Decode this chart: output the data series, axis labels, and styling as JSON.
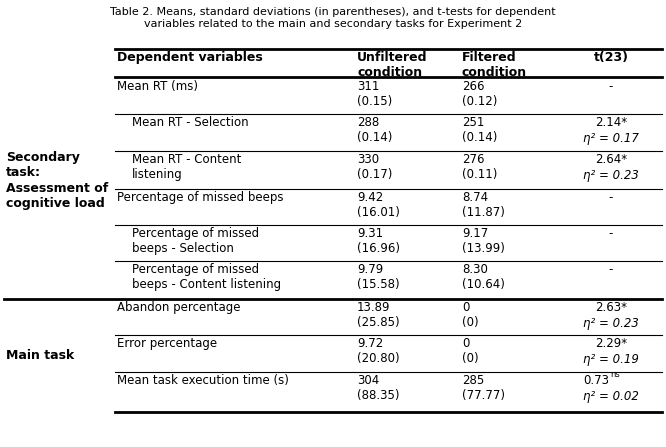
{
  "title": "Table 2. Means, standard deviations (in parentheses), and t-tests for dependent\nvariables related to the main and secondary tasks for Experiment 2",
  "col_headers": [
    "Dependent variables",
    "Unfiltered\ncondition",
    "Filtered\ncondition",
    "t(23)"
  ],
  "rows": [
    {
      "indent": 0,
      "var": "Mean RT (ms)",
      "unfiltered": "311\n(0.15)",
      "filtered": "266\n(0.12)",
      "t": "-",
      "t_line2": ""
    },
    {
      "indent": 1,
      "var": "Mean RT - Selection",
      "unfiltered": "288\n(0.14)",
      "filtered": "251\n(0.14)",
      "t": "2.14*",
      "t_line2": "η² = 0.17"
    },
    {
      "indent": 1,
      "var": "Mean RT - Content\nlistening",
      "unfiltered": "330\n(0.17)",
      "filtered": "276\n(0.11)",
      "t": "2.64*",
      "t_line2": "η² = 0.23"
    },
    {
      "indent": 0,
      "var": "Percentage of missed beeps",
      "unfiltered": "9.42\n(16.01)",
      "filtered": "8.74\n(11.87)",
      "t": "-",
      "t_line2": ""
    },
    {
      "indent": 1,
      "var": "Percentage of missed\nbeeps - Selection",
      "unfiltered": "9.31\n(16.96)",
      "filtered": "9.17\n(13.99)",
      "t": "-",
      "t_line2": ""
    },
    {
      "indent": 1,
      "var": "Percentage of missed\nbeeps - Content listening",
      "unfiltered": "9.79\n(15.58)",
      "filtered": "8.30\n(10.64)",
      "t": "-",
      "t_line2": ""
    },
    {
      "indent": 0,
      "var": "Abandon percentage",
      "unfiltered": "13.89\n(25.85)",
      "filtered": "0\n(0)",
      "t": "2.63*",
      "t_line2": "η² = 0.23"
    },
    {
      "indent": 0,
      "var": "Error percentage",
      "unfiltered": "9.72\n(20.80)",
      "filtered": "0\n(0)",
      "t": "2.29*",
      "t_line2": "η² = 0.19"
    },
    {
      "indent": 0,
      "var": "Mean task execution time (s)",
      "unfiltered": "304\n(88.35)",
      "filtered": "285\n(77.77)",
      "t": "0.73ns",
      "t_line2": "η² = 0.02"
    }
  ],
  "bg_color": "#ffffff",
  "text_color": "#000000",
  "header_color": "#000000",
  "line_color": "#000000",
  "title_fs": 8.0,
  "header_fs": 9.0,
  "body_fs": 8.5,
  "label_fs": 9.0
}
